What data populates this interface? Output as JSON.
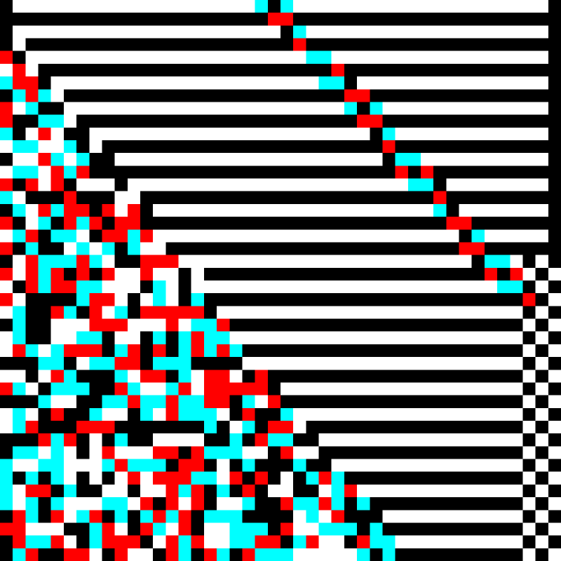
{
  "palette": {
    "black": "#000000",
    "white": "#ffffff",
    "red": "#ff0000",
    "cyan": "#00ffff"
  }
}
